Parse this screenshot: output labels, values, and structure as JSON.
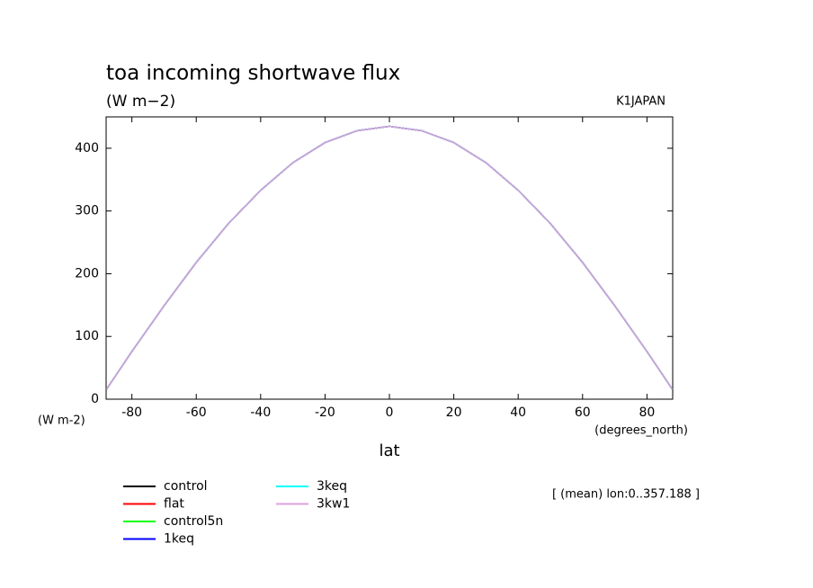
{
  "chart_data": {
    "type": "line",
    "title": "toa incoming shortwave flux",
    "subtitle": "(W m−2)",
    "dataset_label": "K1JAPAN",
    "y_axis_label": "(W m-2)",
    "x_axis_units": "(degrees_north)",
    "x_axis_label": "lat",
    "annotation": "[ (mean) lon:0..357.188 ]",
    "x": [
      -87.86,
      -80,
      -70,
      -60,
      -50,
      -40,
      -30,
      -20,
      -10,
      0,
      10,
      20,
      30,
      40,
      50,
      60,
      70,
      80,
      87.86
    ],
    "series": [
      {
        "name": "control",
        "color": "#000000",
        "values": [
          16,
          76,
          149,
          218,
          280,
          333,
          377,
          409,
          428,
          435,
          428,
          409,
          377,
          333,
          280,
          218,
          149,
          76,
          16
        ]
      },
      {
        "name": "flat",
        "color": "#ff0000",
        "values": [
          16,
          76,
          149,
          218,
          280,
          333,
          377,
          409,
          428,
          435,
          428,
          409,
          377,
          333,
          280,
          218,
          149,
          76,
          16
        ]
      },
      {
        "name": "control5n",
        "color": "#00ff00",
        "values": [
          16,
          76,
          149,
          218,
          280,
          333,
          377,
          409,
          428,
          435,
          428,
          409,
          377,
          333,
          280,
          218,
          149,
          76,
          16
        ]
      },
      {
        "name": "1keq",
        "color": "#0000ff",
        "values": [
          16,
          76,
          149,
          218,
          280,
          333,
          377,
          409,
          428,
          435,
          428,
          409,
          377,
          333,
          280,
          218,
          149,
          76,
          16
        ]
      },
      {
        "name": "3keq",
        "color": "#00ffff",
        "values": [
          16,
          76,
          149,
          218,
          280,
          333,
          377,
          409,
          428,
          435,
          428,
          409,
          377,
          333,
          280,
          218,
          149,
          76,
          16
        ]
      },
      {
        "name": "3kw1",
        "color": "#dda0dd",
        "values": [
          16,
          76,
          149,
          218,
          280,
          333,
          377,
          409,
          428,
          435,
          428,
          409,
          377,
          333,
          280,
          218,
          149,
          76,
          16
        ]
      }
    ],
    "xlim": [
      -88,
      88
    ],
    "xticks": [
      -80,
      -60,
      -40,
      -20,
      0,
      20,
      40,
      60,
      80
    ],
    "ylim": [
      0,
      450
    ],
    "yticks": [
      0,
      100,
      200,
      300,
      400
    ]
  }
}
